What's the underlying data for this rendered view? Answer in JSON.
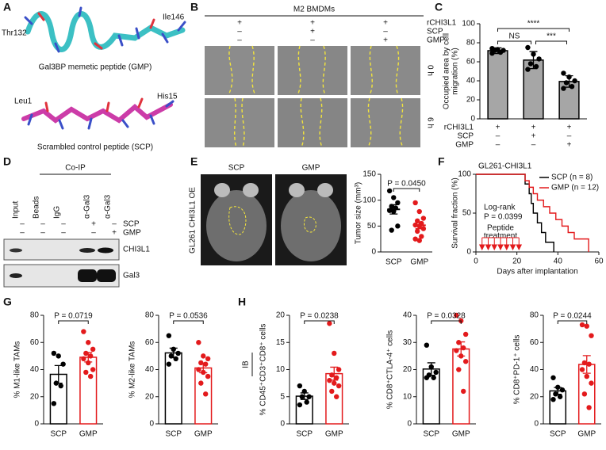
{
  "figure": {
    "panel_labels": [
      "A",
      "B",
      "C",
      "D",
      "E",
      "F",
      "G",
      "H"
    ],
    "panel_a": {
      "top_labels": [
        "Thr132",
        "Ile146"
      ],
      "top_caption": "Gal3BP memetic peptide (GMP)",
      "bottom_labels": [
        "Leu1",
        "His15"
      ],
      "bottom_caption": "Scrambled control peptide (SCP)"
    },
    "panel_b": {
      "title": "M2 BMDMs",
      "rows": [
        {
          "name": "rCHI3L1",
          "signs": [
            "+",
            "+",
            "+"
          ]
        },
        {
          "name": "SCP",
          "signs": [
            "–",
            "+",
            "–"
          ]
        },
        {
          "name": "GMP",
          "signs": [
            "–",
            "–",
            "+"
          ]
        }
      ],
      "times": [
        "0 h",
        "6 h"
      ]
    },
    "panel_d": {
      "title": "Co-IP",
      "lanes": [
        "Input",
        "Beads",
        "IgG",
        "α-Gal3",
        "α-Gal3"
      ],
      "rows": [
        {
          "name": "SCP",
          "signs": [
            "–",
            "–",
            "–",
            "+",
            "–"
          ]
        },
        {
          "name": "GMP",
          "signs": [
            "–",
            "–",
            "–",
            "–",
            "+"
          ]
        }
      ],
      "blots": [
        "CHI3L1",
        "Gal3"
      ]
    },
    "panel_e": {
      "side_label": "GL261 CHI3L1 OE",
      "images": [
        "SCP",
        "GMP"
      ]
    },
    "panel_h": {
      "side_label": "IB"
    }
  },
  "chart_data": [
    {
      "type": "bar",
      "ylabel": [
        "Occupied area by cell",
        "migration (%)"
      ],
      "ylim": [
        0,
        100
      ],
      "yticks": [
        0,
        20,
        40,
        60,
        80,
        100
      ],
      "values": [
        71.7,
        61.8,
        39.3
      ],
      "errors": [
        3,
        9,
        6
      ],
      "points": [
        [
          74,
          73,
          72,
          72,
          70,
          69
        ],
        [
          75,
          68,
          63,
          58,
          55,
          52
        ],
        [
          48,
          44,
          40,
          38,
          34,
          32
        ]
      ],
      "bar_fill": [
        "#a6a6a6",
        "#a6a6a6",
        "#a6a6a6"
      ],
      "colors": [
        "#000000",
        "#000000",
        "#000000"
      ],
      "conditions": [
        {
          "name": "rCHI3L1",
          "signs": [
            "+",
            "+",
            "+"
          ]
        },
        {
          "name": "SCP",
          "signs": [
            "–",
            "+",
            "–"
          ]
        },
        {
          "name": "GMP",
          "signs": [
            "–",
            "–",
            "+"
          ]
        }
      ],
      "brackets": [
        {
          "from": 0,
          "to": 1,
          "label": "NS"
        },
        {
          "from": 1,
          "to": 2,
          "label": "***"
        },
        {
          "from": 0,
          "to": 2,
          "label": "****"
        }
      ]
    },
    {
      "type": "strip",
      "ylabel": "Tumor size (mm³)",
      "ylim": [
        0,
        150
      ],
      "yticks": [
        0,
        50,
        100,
        150
      ],
      "categories": [
        "SCP",
        "GMP"
      ],
      "values": [
        82.3,
        51.4
      ],
      "errors": [
        9,
        6.5
      ],
      "points": [
        [
          118,
          105,
          95,
          88,
          85,
          80,
          78,
          50,
          42
        ],
        [
          95,
          78,
          65,
          60,
          55,
          52,
          50,
          45,
          40,
          30,
          25,
          22
        ]
      ],
      "colors": [
        "#000000",
        "#e31a1c"
      ],
      "brackets": [
        {
          "from": 0,
          "to": 1,
          "label": "P = 0.0450"
        }
      ]
    },
    {
      "type": "survival",
      "title": "GL261-CHI3L1",
      "xlabel": "Days after implantation",
      "ylabel": "Survival fraction (%)",
      "xlim": [
        0,
        60
      ],
      "xticks": [
        0,
        20,
        40,
        60
      ],
      "ylim": [
        0,
        100
      ],
      "yticks": [
        0,
        50,
        100
      ],
      "series": [
        {
          "name": "SCP (n = 8)",
          "color": "#000000",
          "x": [
            0,
            24,
            26,
            27,
            28,
            30,
            32,
            34,
            38
          ],
          "values": [
            100,
            87.5,
            75,
            62.5,
            50,
            37.5,
            25,
            12.5,
            0
          ]
        },
        {
          "name": "GMP (n = 12)",
          "color": "#e31a1c",
          "x": [
            0,
            24,
            26,
            28,
            30,
            33,
            36,
            39,
            42,
            45,
            48,
            55
          ],
          "values": [
            100,
            91.7,
            83.3,
            75,
            66.7,
            58.3,
            50,
            41.7,
            33.3,
            25,
            16.7,
            0
          ]
        }
      ],
      "annotations": [
        "Log-rank",
        "P = 0.0399"
      ],
      "treatment_label": [
        "Peptide",
        "treatment"
      ],
      "treatment_days": [
        3,
        6,
        9,
        12,
        15,
        18,
        21
      ],
      "treatment_color": "#e31a1c"
    },
    {
      "type": "bar",
      "ylabel": "% M1-like TAMs",
      "ylim": [
        0,
        80
      ],
      "yticks": [
        0,
        20,
        40,
        60,
        80
      ],
      "categories": [
        "SCP",
        "GMP"
      ],
      "values": [
        36.5,
        49.1
      ],
      "errors": [
        6.5,
        3.5
      ],
      "points": [
        [
          52,
          50,
          44,
          30,
          28,
          15
        ],
        [
          68,
          60,
          55,
          52,
          50,
          48,
          45,
          40,
          38,
          35
        ]
      ],
      "bar_fill": [
        "#ffffff",
        "#ffffff"
      ],
      "colors": [
        "#000000",
        "#e31a1c"
      ],
      "brackets": [
        {
          "from": 0,
          "to": 1,
          "label": "P = 0.0719"
        }
      ]
    },
    {
      "type": "bar",
      "ylabel": "% M2-like TAMs",
      "ylim": [
        0,
        80
      ],
      "yticks": [
        0,
        20,
        40,
        60,
        80
      ],
      "categories": [
        "SCP",
        "GMP"
      ],
      "values": [
        52.3,
        41.2
      ],
      "errors": [
        3.5,
        3.5
      ],
      "points": [
        [
          65,
          55,
          52,
          50,
          48,
          44
        ],
        [
          60,
          50,
          48,
          45,
          44,
          40,
          38,
          35,
          30,
          22
        ]
      ],
      "bar_fill": [
        "#ffffff",
        "#ffffff"
      ],
      "colors": [
        "#000000",
        "#e31a1c"
      ],
      "brackets": [
        {
          "from": 0,
          "to": 1,
          "label": "P = 0.0536"
        }
      ]
    },
    {
      "type": "bar",
      "ylabel": "% CD45⁺CD3⁺CD8⁺ cells",
      "ylim": [
        0,
        20
      ],
      "yticks": [
        0,
        5,
        10,
        15,
        20
      ],
      "categories": [
        "SCP",
        "GMP"
      ],
      "values": [
        5.1,
        9.25
      ],
      "errors": [
        0.6,
        1.2
      ],
      "points": [
        [
          7,
          6,
          5,
          5,
          4,
          3.5
        ],
        [
          18.5,
          13,
          10,
          9,
          8.5,
          8,
          7.5,
          7,
          6,
          5
        ]
      ],
      "bar_fill": [
        "#ffffff",
        "#ffffff"
      ],
      "colors": [
        "#000000",
        "#e31a1c"
      ],
      "brackets": [
        {
          "from": 0,
          "to": 1,
          "label": "P = 0.0238"
        }
      ]
    },
    {
      "type": "bar",
      "ylabel": "% CD8⁺CTLA-4⁺ cells",
      "ylim": [
        0,
        40
      ],
      "yticks": [
        0,
        10,
        20,
        30,
        40
      ],
      "categories": [
        "SCP",
        "GMP"
      ],
      "values": [
        20.2,
        27.6
      ],
      "errors": [
        2.3,
        2.6
      ],
      "points": [
        [
          29,
          21,
          19,
          18,
          17,
          17
        ],
        [
          40,
          38,
          33,
          30,
          28,
          27,
          25,
          23,
          20,
          12
        ]
      ],
      "bar_fill": [
        "#ffffff",
        "#ffffff"
      ],
      "colors": [
        "#000000",
        "#e31a1c"
      ],
      "brackets": [
        {
          "from": 0,
          "to": 1,
          "label": "P = 0.0328"
        }
      ]
    },
    {
      "type": "bar",
      "ylabel": "% CD8⁺PD-1⁺ cells",
      "ylim": [
        0,
        80
      ],
      "yticks": [
        0,
        20,
        40,
        60,
        80
      ],
      "categories": [
        "SCP",
        "GMP"
      ],
      "values": [
        24.3,
        43.8
      ],
      "errors": [
        2.5,
        6.5
      ],
      "points": [
        [
          34,
          27,
          25,
          22,
          20,
          18
        ],
        [
          73,
          72,
          65,
          45,
          44,
          40,
          35,
          30,
          22,
          12
        ]
      ],
      "bar_fill": [
        "#ffffff",
        "#ffffff"
      ],
      "colors": [
        "#000000",
        "#e31a1c"
      ],
      "brackets": [
        {
          "from": 0,
          "to": 1,
          "label": "P = 0.0244"
        }
      ]
    }
  ]
}
